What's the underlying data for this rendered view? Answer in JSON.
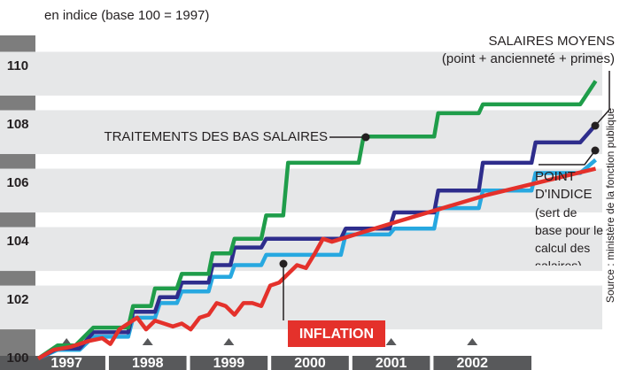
{
  "chart_data": {
    "type": "line",
    "subtitle": "en indice (base 100 = 1997)",
    "source": "Source : ministère de la fonction publique",
    "xlim": [
      1996.18,
      2003.82
    ],
    "xticks": [
      1997,
      1998,
      1999,
      2000,
      2001,
      2002
    ],
    "ylim": [
      99.61,
      111.06
    ],
    "yticks": [
      100,
      102,
      104,
      106,
      108,
      110
    ],
    "grid": true,
    "series": [
      {
        "name": "POINT D'INDICE",
        "note": "(sert de base pour le calcul des salaires)",
        "color": "#27a8e0",
        "x": [
          1996.65,
          1996.89,
          1997.16,
          1997.33,
          1997.76,
          1997.82,
          1998.09,
          1998.15,
          1998.36,
          1998.42,
          1998.75,
          1998.8,
          1999.02,
          1999.07,
          1999.4,
          1999.46,
          2000.38,
          2000.44,
          2000.98,
          2001.04,
          2001.53,
          2001.58,
          2002.08,
          2002.13,
          2002.73,
          2002.78,
          2003.33,
          2003.52
        ],
        "values": [
          100,
          100.3,
          100.3,
          100.75,
          100.75,
          101.4,
          101.4,
          101.9,
          101.9,
          102.3,
          102.3,
          102.8,
          102.8,
          103.2,
          103.2,
          103.55,
          103.55,
          104.25,
          104.25,
          104.45,
          104.45,
          105.15,
          105.15,
          105.75,
          105.75,
          106.35,
          106.35,
          106.8
        ]
      },
      {
        "name": "SALAIRES MOYENS",
        "note": "(point + ancienneté + primes)",
        "color": "#2e2d8c",
        "x": [
          1996.65,
          1996.89,
          1997.16,
          1997.33,
          1997.76,
          1997.82,
          1998.09,
          1998.15,
          1998.36,
          1998.42,
          1998.75,
          1998.8,
          1999.02,
          1999.07,
          1999.4,
          1999.46,
          2000.38,
          2000.44,
          2000.98,
          2001.04,
          2001.53,
          2001.58,
          2002.08,
          2002.13,
          2002.73,
          2002.78,
          2003.33,
          2003.52
        ],
        "values": [
          100,
          100.35,
          100.35,
          100.9,
          100.9,
          101.6,
          101.6,
          102.1,
          102.1,
          102.6,
          102.6,
          103.2,
          103.2,
          103.8,
          103.8,
          104.1,
          104.1,
          104.45,
          104.45,
          105.0,
          105.0,
          105.75,
          105.75,
          106.7,
          106.7,
          107.4,
          107.4,
          108.0
        ]
      },
      {
        "name": "TRAITEMENTS DES BAS SALAIRES",
        "color": "#1f9d4a",
        "x": [
          1996.65,
          1996.89,
          1997.11,
          1997.33,
          1997.76,
          1997.82,
          1998.04,
          1998.09,
          1998.36,
          1998.42,
          1998.75,
          1998.8,
          1999.02,
          1999.07,
          1999.4,
          1999.46,
          1999.67,
          1999.73,
          2000.6,
          2000.66,
          2001.53,
          2001.58,
          2002.08,
          2002.13,
          2003.33,
          2003.52
        ],
        "values": [
          100,
          100.45,
          100.45,
          101.06,
          101.06,
          101.8,
          101.8,
          102.4,
          102.4,
          102.9,
          102.9,
          103.6,
          103.6,
          104.1,
          104.1,
          104.9,
          104.9,
          106.7,
          106.7,
          107.6,
          107.6,
          108.4,
          108.4,
          108.7,
          108.7,
          109.5
        ]
      },
      {
        "name": "INFLATION",
        "color": "#e4312b",
        "x": [
          1996.65,
          1996.84,
          1997.05,
          1997.27,
          1997.44,
          1997.54,
          1997.65,
          1997.76,
          1997.87,
          1997.98,
          1998.09,
          1998.2,
          1998.31,
          1998.42,
          1998.53,
          1998.64,
          1998.75,
          1998.85,
          1998.96,
          1999.07,
          1999.18,
          1999.29,
          1999.4,
          1999.51,
          1999.62,
          1999.73,
          1999.84,
          1999.95,
          2000.06,
          2000.16,
          2000.27,
          2001.09,
          2002.18,
          2003.52
        ],
        "values": [
          100,
          100.3,
          100.4,
          100.6,
          100.7,
          100.5,
          101.0,
          101.2,
          101.4,
          101.0,
          101.3,
          101.2,
          101.1,
          101.2,
          101.0,
          101.4,
          101.5,
          101.9,
          101.8,
          101.5,
          101.9,
          101.9,
          101.8,
          102.5,
          102.6,
          102.9,
          103.2,
          103.1,
          103.6,
          104.1,
          104.0,
          104.7,
          105.6,
          106.5
        ]
      }
    ]
  }
}
